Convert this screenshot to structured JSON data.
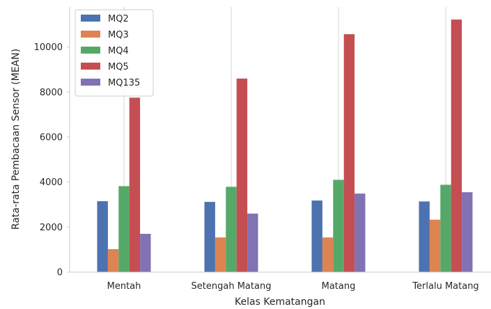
{
  "chart_data": {
    "type": "bar",
    "title": "",
    "xlabel": "Kelas Kematangan",
    "ylabel": "Rata-rata Pembacaan Sensor (MEAN)",
    "categories": [
      "Mentah",
      "Setengah Matang",
      "Matang",
      "Terlalu Matang"
    ],
    "series": [
      {
        "name": "MQ2",
        "color": "#4c72b0",
        "values": [
          3150,
          3120,
          3180,
          3140
        ]
      },
      {
        "name": "MQ3",
        "color": "#dd8452",
        "values": [
          1020,
          1540,
          1540,
          2330
        ]
      },
      {
        "name": "MQ4",
        "color": "#55a868",
        "values": [
          3820,
          3790,
          4100,
          3880
        ]
      },
      {
        "name": "MQ5",
        "color": "#c44e52",
        "values": [
          7750,
          8600,
          10570,
          11220
        ]
      },
      {
        "name": "MQ135",
        "color": "#8172b3",
        "values": [
          1700,
          2600,
          3490,
          3550
        ]
      }
    ],
    "ylim": [
      0,
      11780
    ],
    "yticks": [
      0,
      2000,
      4000,
      6000,
      8000,
      10000
    ],
    "grid": "x",
    "legend": "top-left"
  }
}
